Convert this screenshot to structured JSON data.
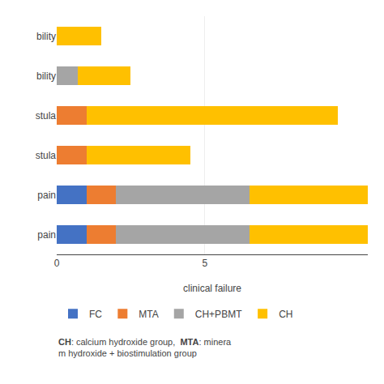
{
  "chart_data": {
    "type": "bar",
    "orientation": "horizontal",
    "stacked": true,
    "categories": [
      "  bility",
      "  bility",
      "  stula",
      "  stula",
      "  pain",
      "  pain"
    ],
    "series": [
      {
        "name": "FC",
        "color": "#4472c4",
        "values": [
          0,
          0,
          0,
          0,
          1.0,
          1.0
        ]
      },
      {
        "name": "MTA",
        "color": "#ed7d31",
        "values": [
          0,
          0,
          1.0,
          1.0,
          1.0,
          1.0
        ]
      },
      {
        "name": "CH+PBMT",
        "color": "#a5a5a5",
        "values": [
          0,
          0.7,
          0,
          0,
          4.5,
          4.5
        ]
      },
      {
        "name": "CH",
        "color": "#ffc000",
        "values": [
          1.5,
          1.8,
          8.5,
          3.5,
          4.0,
          4.0
        ]
      }
    ],
    "xlabel": "clinical failure",
    "xlim": [
      0,
      10.5
    ],
    "xticks": [
      0,
      5
    ],
    "grid": true,
    "legend": "bottom",
    "annotations": [
      "CH",
      ": calcium hydroxide group,  ",
      "MTA",
      ": minera",
      "m hydroxide + biostimulation group"
    ]
  }
}
